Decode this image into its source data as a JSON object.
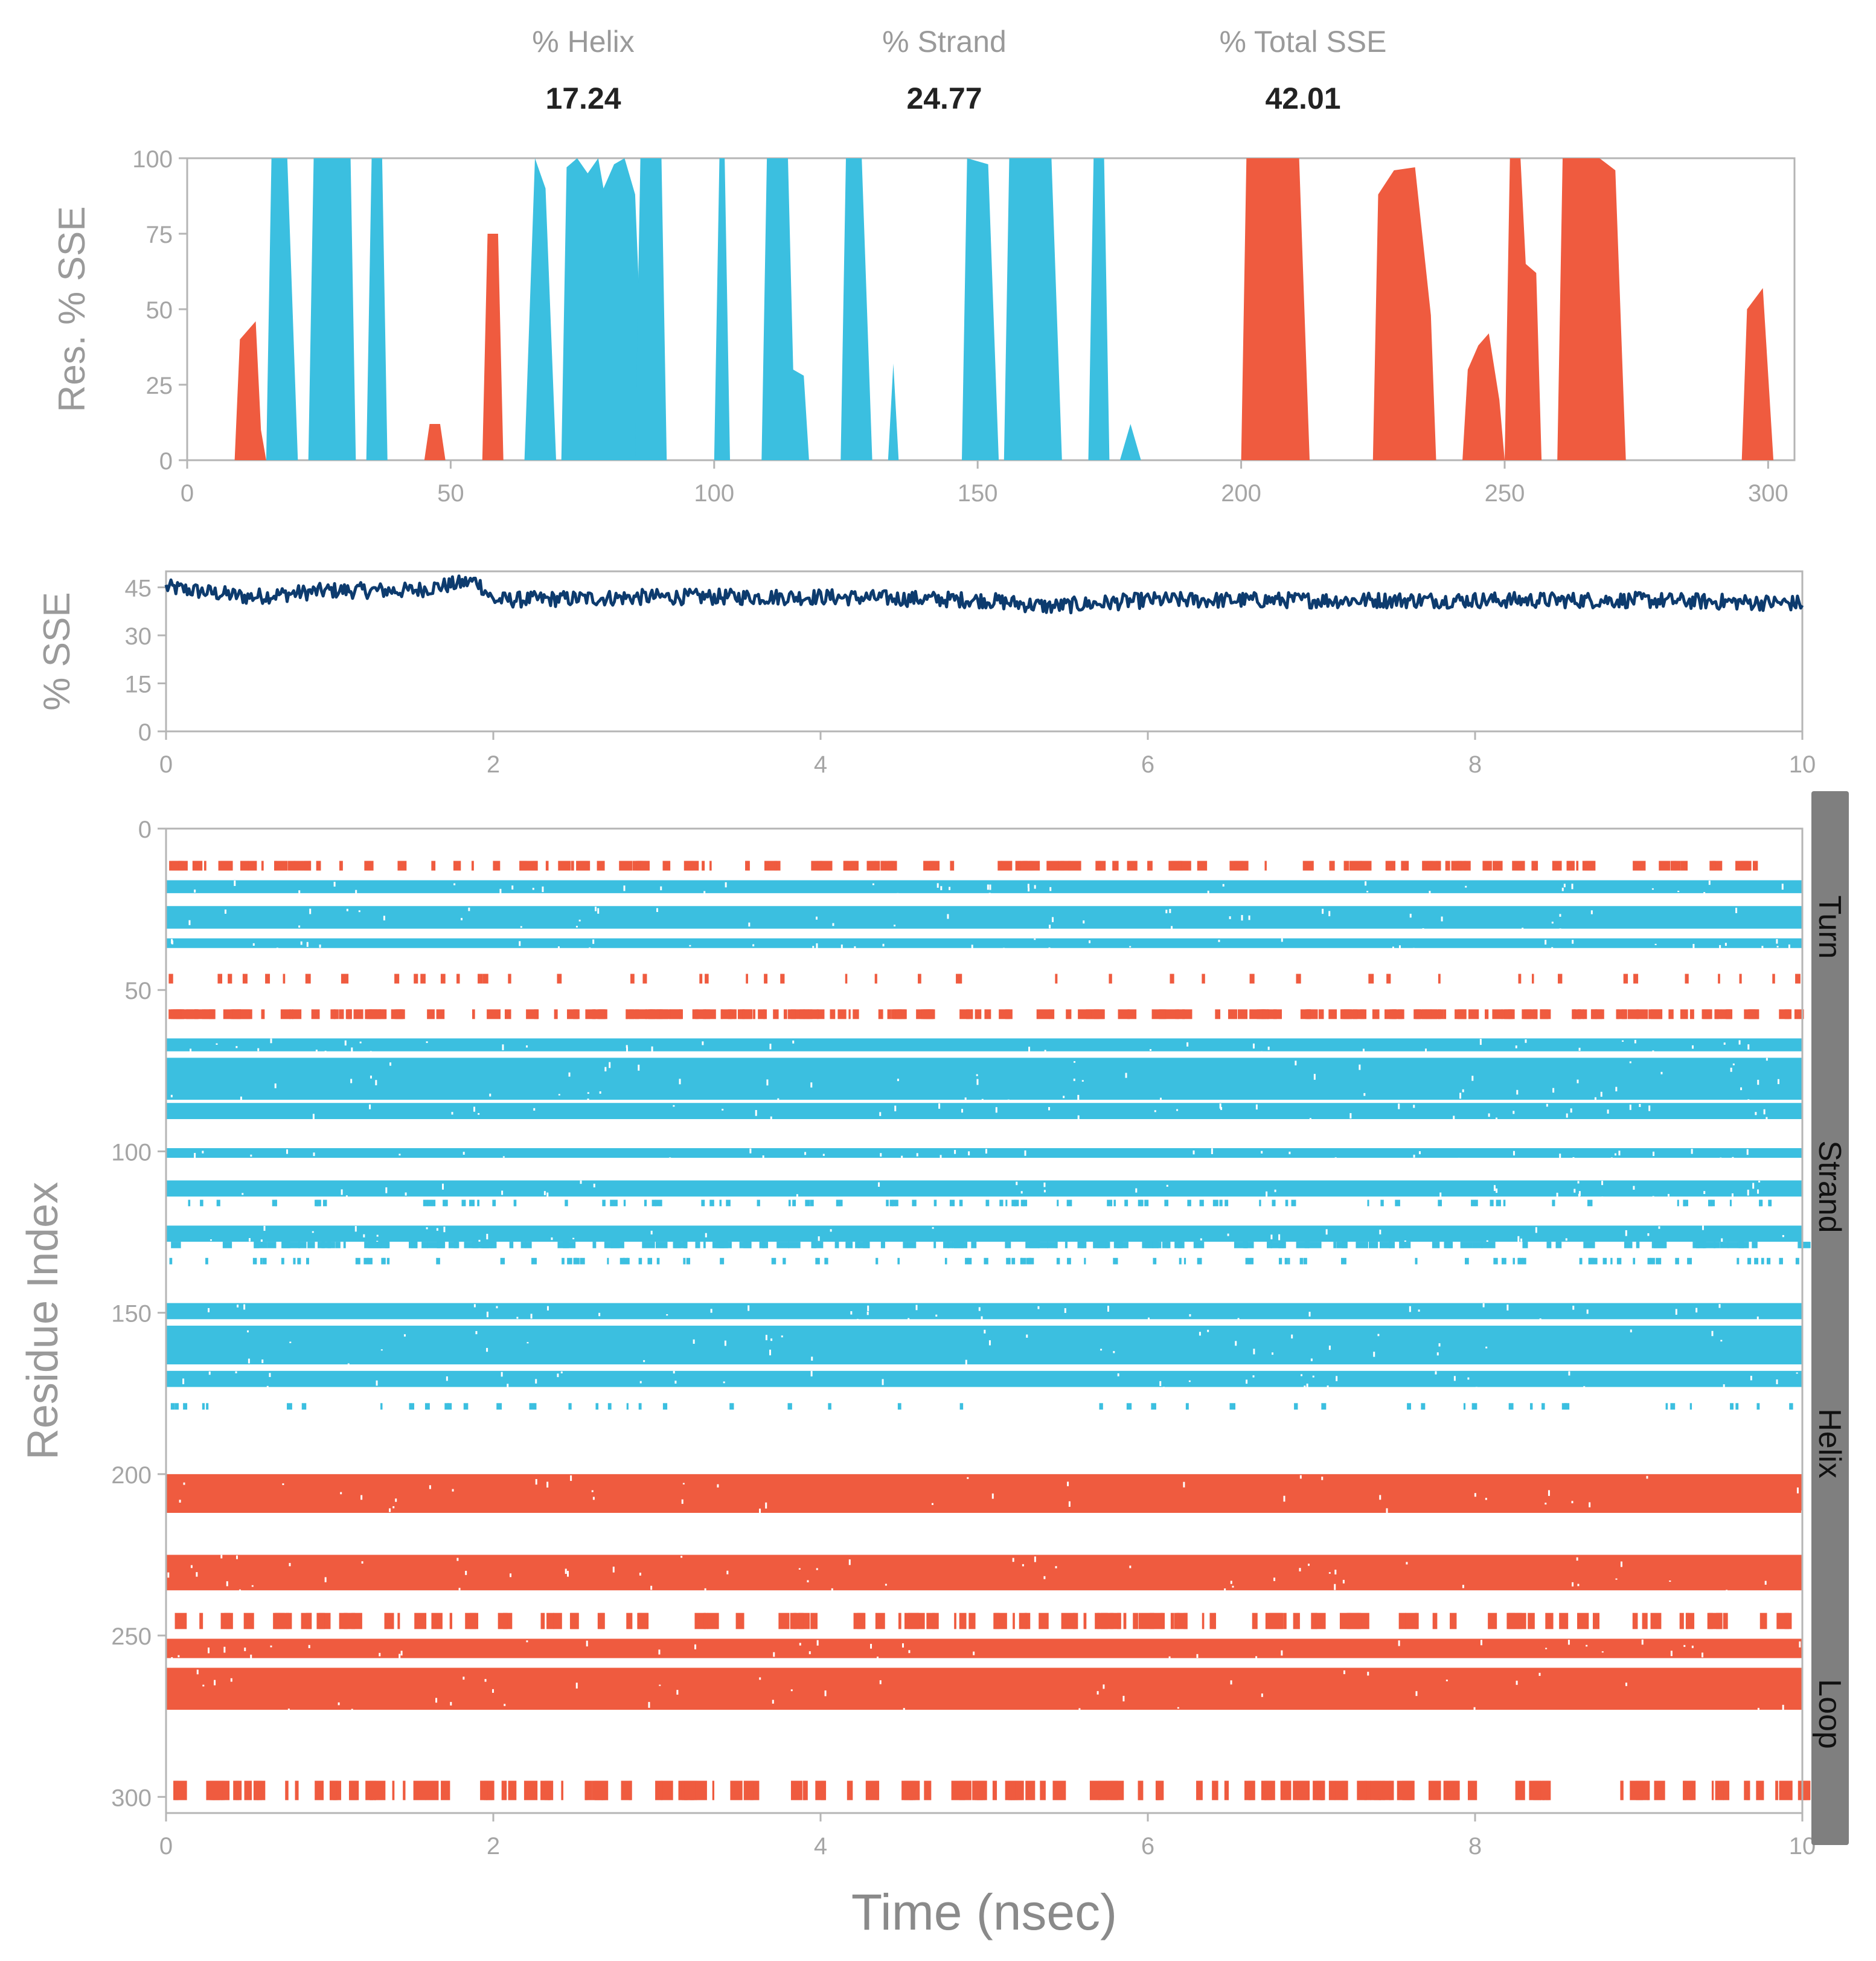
{
  "stats": {
    "helix_label": "% Helix",
    "helix_value": "17.24",
    "strand_label": "% Strand",
    "strand_value": "24.77",
    "total_label": "% Total SSE",
    "total_value": "42.01"
  },
  "colors": {
    "helix": "#ef5b3f",
    "strand": "#3bbfe0",
    "line": "#0d3b6e",
    "axis": "#b5b5b5",
    "tick": "#a5a5a5",
    "sidebar": "#7f7f7f"
  },
  "chart_data": [
    {
      "name": "per-residue-sse",
      "type": "area",
      "ylabel": "Res. % SSE",
      "xlim": [
        0,
        305
      ],
      "ylim": [
        0,
        100
      ],
      "xticks": [
        "0",
        "50",
        "100",
        "150",
        "200",
        "250",
        "300"
      ],
      "yticks": [
        "0",
        "25",
        "50",
        "75",
        "100"
      ],
      "series": [
        {
          "name": "Helix",
          "segments": [
            [
              [
                9,
                0
              ],
              [
                10,
                40
              ],
              [
                12,
                44
              ],
              [
                13,
                46
              ],
              [
                14,
                10
              ],
              [
                15,
                0
              ]
            ],
            [
              [
                45,
                0
              ],
              [
                46,
                12
              ],
              [
                48,
                12
              ],
              [
                49,
                0
              ]
            ],
            [
              [
                56,
                0
              ],
              [
                57,
                75
              ],
              [
                59,
                75
              ],
              [
                60,
                0
              ]
            ],
            [
              [
                200,
                0
              ],
              [
                201,
                100
              ],
              [
                211,
                100
              ],
              [
                213,
                0
              ]
            ],
            [
              [
                225,
                0
              ],
              [
                226,
                88
              ],
              [
                229,
                96
              ],
              [
                233,
                97
              ],
              [
                236,
                48
              ],
              [
                237,
                0
              ]
            ],
            [
              [
                242,
                0
              ],
              [
                243,
                30
              ],
              [
                245,
                38
              ],
              [
                247,
                42
              ],
              [
                249,
                20
              ],
              [
                250,
                0
              ]
            ],
            [
              [
                250,
                0
              ],
              [
                251,
                100
              ],
              [
                253,
                100
              ],
              [
                254,
                65
              ],
              [
                256,
                62
              ],
              [
                257,
                0
              ]
            ],
            [
              [
                260,
                0
              ],
              [
                261,
                100
              ],
              [
                268,
                100
              ],
              [
                271,
                96
              ],
              [
                273,
                0
              ]
            ],
            [
              [
                295,
                0
              ],
              [
                296,
                50
              ],
              [
                299,
                57
              ],
              [
                301,
                0
              ]
            ]
          ]
        },
        {
          "name": "Strand",
          "segments": [
            [
              [
                15,
                0
              ],
              [
                16,
                100
              ],
              [
                19,
                100
              ],
              [
                21,
                0
              ]
            ],
            [
              [
                23,
                0
              ],
              [
                24,
                100
              ],
              [
                31,
                100
              ],
              [
                32,
                0
              ]
            ],
            [
              [
                34,
                0
              ],
              [
                35,
                100
              ],
              [
                37,
                100
              ],
              [
                38,
                0
              ]
            ],
            [
              [
                64,
                0
              ],
              [
                66,
                100
              ],
              [
                68,
                90
              ],
              [
                70,
                0
              ]
            ],
            [
              [
                71,
                0
              ],
              [
                72,
                97
              ],
              [
                74,
                100
              ],
              [
                76,
                95
              ],
              [
                78,
                100
              ],
              [
                79,
                90
              ],
              [
                81,
                98
              ],
              [
                83,
                100
              ],
              [
                85,
                88
              ],
              [
                87,
                0
              ]
            ],
            [
              [
                85,
                0
              ],
              [
                86,
                100
              ],
              [
                90,
                100
              ],
              [
                91,
                0
              ]
            ],
            [
              [
                100,
                0
              ],
              [
                101,
                100
              ],
              [
                102,
                100
              ],
              [
                103,
                0
              ]
            ],
            [
              [
                109,
                0
              ],
              [
                110,
                100
              ],
              [
                114,
                100
              ],
              [
                115,
                30
              ],
              [
                117,
                28
              ],
              [
                118,
                0
              ]
            ],
            [
              [
                124,
                0
              ],
              [
                125,
                100
              ],
              [
                128,
                100
              ],
              [
                129,
                50
              ],
              [
                130,
                0
              ]
            ],
            [
              [
                133,
                0
              ],
              [
                134,
                32
              ],
              [
                135,
                0
              ]
            ],
            [
              [
                147,
                0
              ],
              [
                148,
                100
              ],
              [
                152,
                98
              ],
              [
                154,
                0
              ]
            ],
            [
              [
                155,
                0
              ],
              [
                156,
                100
              ],
              [
                164,
                100
              ],
              [
                166,
                0
              ]
            ],
            [
              [
                171,
                0
              ],
              [
                172,
                100
              ],
              [
                174,
                100
              ],
              [
                175,
                0
              ]
            ],
            [
              [
                177,
                0
              ],
              [
                179,
                12
              ],
              [
                181,
                0
              ]
            ]
          ]
        }
      ]
    },
    {
      "name": "total-sse-over-time",
      "type": "line",
      "ylabel": "% SSE",
      "xlim": [
        0,
        10
      ],
      "ylim": [
        0,
        50
      ],
      "xticks": [
        "0",
        "2",
        "4",
        "6",
        "8",
        "10"
      ],
      "yticks": [
        "0",
        "15",
        "30",
        "45"
      ],
      "x": [
        0,
        0.5,
        1.0,
        1.5,
        1.9,
        2.0,
        3.0,
        4.0,
        5.0,
        5.4,
        6.0,
        7.0,
        8.0,
        9.0,
        10.0
      ],
      "y": [
        45,
        42,
        44,
        44,
        47,
        41,
        42,
        42,
        41,
        39,
        41,
        41,
        41,
        41,
        40
      ]
    },
    {
      "name": "sse-timeline",
      "type": "heatmap",
      "xlabel": "Time (nsec)",
      "ylabel": "Residue Index",
      "xlim": [
        0,
        10
      ],
      "ylim": [
        0,
        305
      ],
      "xticks": [
        "0",
        "2",
        "4",
        "6",
        "8",
        "10"
      ],
      "yticks": [
        "0",
        "50",
        "100",
        "150",
        "200",
        "250",
        "300"
      ],
      "bands": [
        {
          "sse": "helix",
          "r0": 10,
          "r1": 13,
          "occupancy": 0.45
        },
        {
          "sse": "helix",
          "r0": 45,
          "r1": 48,
          "occupancy": 0.12
        },
        {
          "sse": "helix",
          "r0": 56,
          "r1": 59,
          "occupancy": 0.75
        },
        {
          "sse": "strand",
          "r0": 16,
          "r1": 20,
          "occupancy": 1.0
        },
        {
          "sse": "strand",
          "r0": 24,
          "r1": 31,
          "occupancy": 1.0
        },
        {
          "sse": "strand",
          "r0": 34,
          "r1": 37,
          "occupancy": 1.0
        },
        {
          "sse": "strand",
          "r0": 65,
          "r1": 69,
          "occupancy": 1.0
        },
        {
          "sse": "strand",
          "r0": 71,
          "r1": 84,
          "occupancy": 0.95
        },
        {
          "sse": "strand",
          "r0": 85,
          "r1": 90,
          "occupancy": 1.0
        },
        {
          "sse": "strand",
          "r0": 99,
          "r1": 102,
          "occupancy": 1.0
        },
        {
          "sse": "strand",
          "r0": 109,
          "r1": 114,
          "occupancy": 1.0
        },
        {
          "sse": "strand",
          "r0": 115,
          "r1": 117,
          "occupancy": 0.3
        },
        {
          "sse": "strand",
          "r0": 123,
          "r1": 128,
          "occupancy": 1.0
        },
        {
          "sse": "strand",
          "r0": 128,
          "r1": 130,
          "occupancy": 0.5
        },
        {
          "sse": "strand",
          "r0": 133,
          "r1": 135,
          "occupancy": 0.3
        },
        {
          "sse": "strand",
          "r0": 147,
          "r1": 152,
          "occupancy": 1.0
        },
        {
          "sse": "strand",
          "r0": 154,
          "r1": 166,
          "occupancy": 1.0
        },
        {
          "sse": "strand",
          "r0": 168,
          "r1": 173,
          "occupancy": 1.0
        },
        {
          "sse": "strand",
          "r0": 178,
          "r1": 180,
          "occupancy": 0.12
        },
        {
          "sse": "helix",
          "r0": 200,
          "r1": 212,
          "occupancy": 1.0
        },
        {
          "sse": "helix",
          "r0": 225,
          "r1": 236,
          "occupancy": 0.95
        },
        {
          "sse": "helix",
          "r0": 243,
          "r1": 248,
          "occupancy": 0.42
        },
        {
          "sse": "helix",
          "r0": 251,
          "r1": 257,
          "occupancy": 1.0
        },
        {
          "sse": "helix",
          "r0": 260,
          "r1": 273,
          "occupancy": 1.0
        },
        {
          "sse": "helix",
          "r0": 295,
          "r1": 301,
          "occupancy": 0.55
        }
      ]
    }
  ],
  "sidebar": {
    "labels": [
      "Turn",
      "Strand",
      "Helix",
      "Loop"
    ]
  }
}
